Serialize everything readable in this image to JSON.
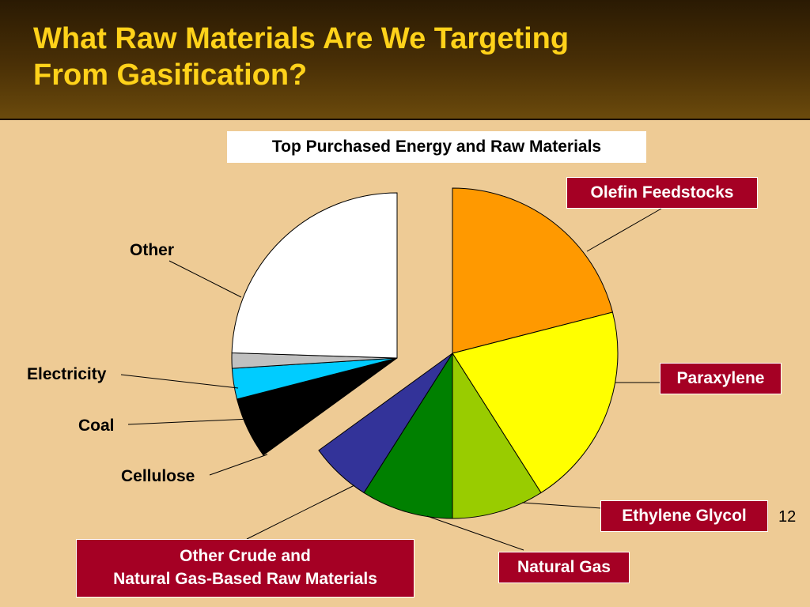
{
  "slide": {
    "title_line1": "What Raw Materials Are We Targeting",
    "title_line2": "From Gasification?",
    "page_number": "12"
  },
  "colors": {
    "background": "#eecb95",
    "title": "#ffd21a",
    "label_box": "#a50024"
  },
  "chart_data": {
    "type": "pie",
    "title": "Top Purchased Energy and Raw Materials",
    "exploded_groups": [
      "feedstocks",
      "energy"
    ],
    "slices": [
      {
        "label": "Olefin Feedstocks",
        "value": 21,
        "color": "#ff9900",
        "group": "feedstocks"
      },
      {
        "label": "Paraxylene",
        "value": 20,
        "color": "#ffff00",
        "group": "feedstocks"
      },
      {
        "label": "Ethylene Glycol",
        "value": 9,
        "color": "#99cc00",
        "group": "feedstocks"
      },
      {
        "label": "Natural Gas",
        "value": 9,
        "color": "#008000",
        "group": "feedstocks"
      },
      {
        "label": "Other Crude and Natural Gas-Based Raw Materials",
        "value": 6,
        "color": "#333399",
        "group": "feedstocks"
      },
      {
        "label": "Cellulose",
        "value": 6,
        "color": "#000000",
        "group": "energy"
      },
      {
        "label": "Coal",
        "value": 3,
        "color": "#00ccff",
        "group": "energy"
      },
      {
        "label": "Electricity",
        "value": 1.5,
        "color": "#c0c0c0",
        "group": "energy"
      },
      {
        "label": "Other",
        "value": 24.5,
        "color": "#ffffff",
        "group": "energy"
      }
    ]
  },
  "labels": {
    "olefin": "Olefin Feedstocks",
    "paraxylene": "Paraxylene",
    "ethylene_glycol": "Ethylene Glycol",
    "natural_gas": "Natural Gas",
    "other_crude_line1": "Other Crude and",
    "other_crude_line2": "Natural Gas-Based Raw Materials",
    "cellulose": "Cellulose",
    "coal": "Coal",
    "electricity": "Electricity",
    "other": "Other"
  }
}
